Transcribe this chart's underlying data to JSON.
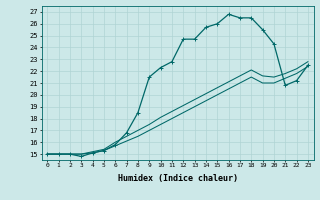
{
  "xlabel": "Humidex (Indice chaleur)",
  "xlim": [
    -0.5,
    23.5
  ],
  "ylim": [
    14.5,
    27.5
  ],
  "xticks": [
    0,
    1,
    2,
    3,
    4,
    5,
    6,
    7,
    8,
    9,
    10,
    11,
    12,
    13,
    14,
    15,
    16,
    17,
    18,
    19,
    20,
    21,
    22,
    23
  ],
  "yticks": [
    15,
    16,
    17,
    18,
    19,
    20,
    21,
    22,
    23,
    24,
    25,
    26,
    27
  ],
  "bg_color": "#cce8e8",
  "line_color": "#006868",
  "grid_color": "#b0d4d4",
  "curve1_x": [
    0,
    1,
    2,
    3,
    4,
    5,
    6,
    7,
    8,
    9,
    10,
    11,
    12,
    13,
    14,
    15,
    16,
    17,
    18,
    19,
    20,
    21,
    22,
    23
  ],
  "curve1_y": [
    15,
    15,
    15,
    14.8,
    15.1,
    15.3,
    15.8,
    16.8,
    18.5,
    21.5,
    22.3,
    22.8,
    24.7,
    24.7,
    25.7,
    26.0,
    26.8,
    26.5,
    26.5,
    25.5,
    24.3,
    20.8,
    21.2,
    22.5
  ],
  "curve2_x": [
    0,
    1,
    2,
    3,
    4,
    5,
    6,
    7,
    8,
    9,
    10,
    11,
    12,
    13,
    14,
    15,
    16,
    17,
    18,
    19,
    20,
    21,
    22,
    23
  ],
  "curve2_y": [
    15,
    15,
    15,
    15,
    15.2,
    15.4,
    16.0,
    16.5,
    17.0,
    17.5,
    18.1,
    18.6,
    19.1,
    19.6,
    20.1,
    20.6,
    21.1,
    21.6,
    22.1,
    21.6,
    21.5,
    21.8,
    22.2,
    22.8
  ],
  "curve3_x": [
    0,
    1,
    2,
    3,
    4,
    5,
    6,
    7,
    8,
    9,
    10,
    11,
    12,
    13,
    14,
    15,
    16,
    17,
    18,
    19,
    20,
    21,
    22,
    23
  ],
  "curve3_y": [
    15,
    15,
    15,
    15,
    15.1,
    15.3,
    15.7,
    16.1,
    16.5,
    17.0,
    17.5,
    18.0,
    18.5,
    19.0,
    19.5,
    20.0,
    20.5,
    21.0,
    21.5,
    21.0,
    21.0,
    21.4,
    21.8,
    22.4
  ]
}
